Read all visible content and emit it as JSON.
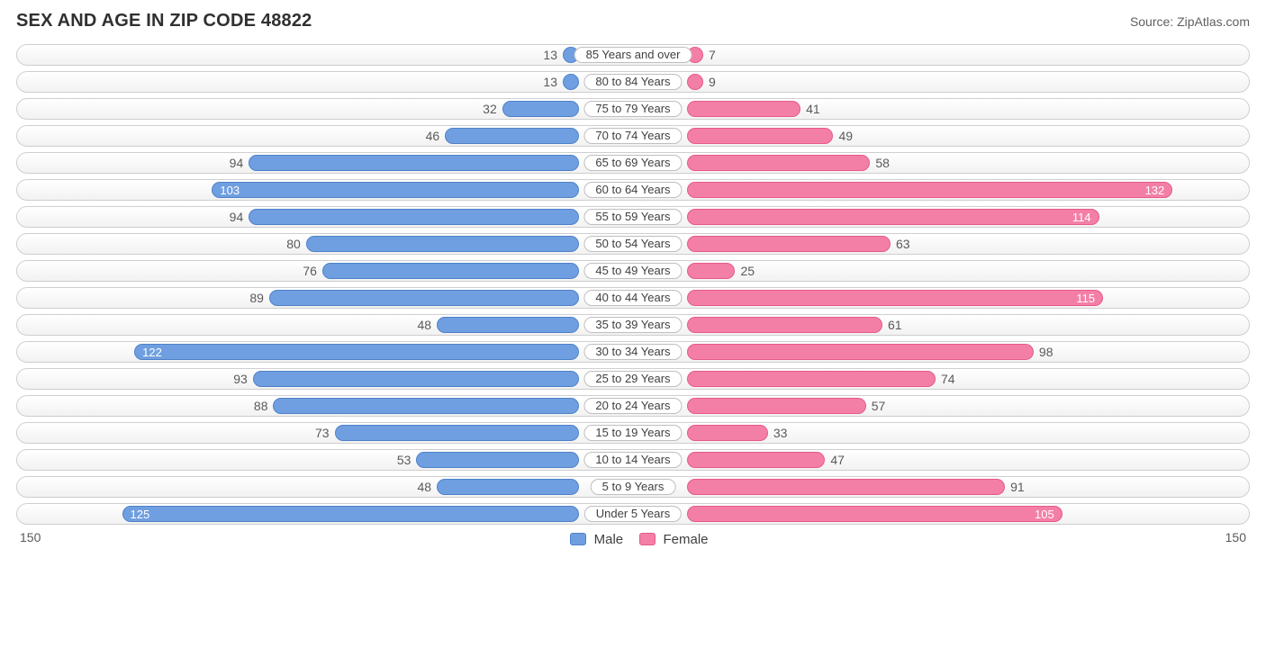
{
  "title": "SEX AND AGE IN ZIP CODE 48822",
  "source": "Source: ZipAtlas.com",
  "axis_max": 150,
  "axis_left_label": "150",
  "axis_right_label": "150",
  "inside_label_threshold": 100,
  "colors": {
    "male_fill": "#6f9fe0",
    "male_border": "#4f82c9",
    "female_fill": "#f47fa6",
    "female_border": "#e55a8a",
    "track_border": "#cfcfcf",
    "text_muted": "#5a5a5a"
  },
  "legend": {
    "male": "Male",
    "female": "Female"
  },
  "rows": [
    {
      "label": "85 Years and over",
      "male": 13,
      "female": 7
    },
    {
      "label": "80 to 84 Years",
      "male": 13,
      "female": 9
    },
    {
      "label": "75 to 79 Years",
      "male": 32,
      "female": 41
    },
    {
      "label": "70 to 74 Years",
      "male": 46,
      "female": 49
    },
    {
      "label": "65 to 69 Years",
      "male": 94,
      "female": 58
    },
    {
      "label": "60 to 64 Years",
      "male": 103,
      "female": 132
    },
    {
      "label": "55 to 59 Years",
      "male": 94,
      "female": 114
    },
    {
      "label": "50 to 54 Years",
      "male": 80,
      "female": 63
    },
    {
      "label": "45 to 49 Years",
      "male": 76,
      "female": 25
    },
    {
      "label": "40 to 44 Years",
      "male": 89,
      "female": 115
    },
    {
      "label": "35 to 39 Years",
      "male": 48,
      "female": 61
    },
    {
      "label": "30 to 34 Years",
      "male": 122,
      "female": 98
    },
    {
      "label": "25 to 29 Years",
      "male": 93,
      "female": 74
    },
    {
      "label": "20 to 24 Years",
      "male": 88,
      "female": 57
    },
    {
      "label": "15 to 19 Years",
      "male": 73,
      "female": 33
    },
    {
      "label": "10 to 14 Years",
      "male": 53,
      "female": 47
    },
    {
      "label": "5 to 9 Years",
      "male": 48,
      "female": 91
    },
    {
      "label": "Under 5 Years",
      "male": 125,
      "female": 105
    }
  ]
}
